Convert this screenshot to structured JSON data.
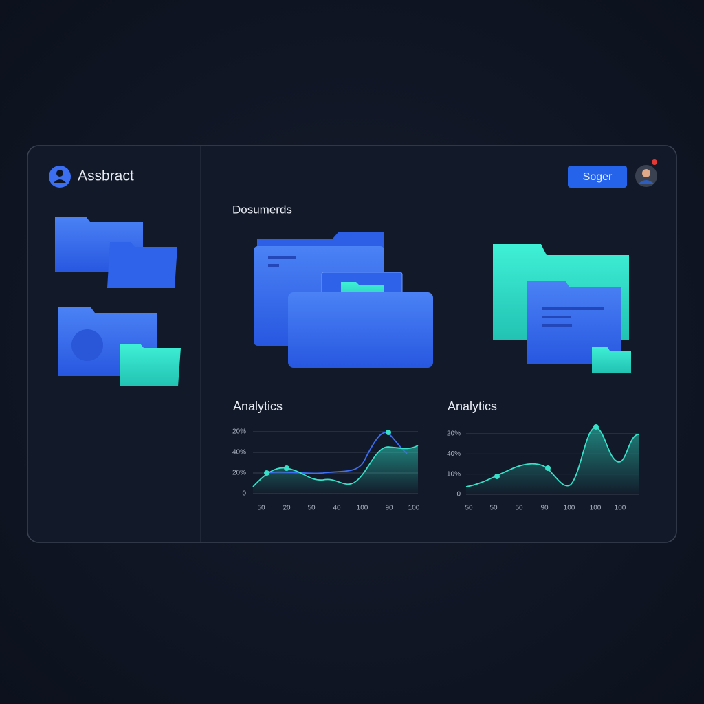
{
  "header": {
    "title": "Assbract",
    "button": "Soger"
  },
  "section": {
    "title": "Dosumerds"
  },
  "panels": [
    {
      "title": "Analytics",
      "y_labels": [
        "20%",
        "40%",
        "20%",
        "0"
      ],
      "x_labels": [
        "50",
        "20",
        "50",
        "40",
        "100",
        "90",
        "100"
      ]
    },
    {
      "title": "Analytics",
      "y_labels": [
        "20%",
        "40%",
        "10%",
        "0"
      ],
      "x_labels": [
        "50",
        "50",
        "50",
        "90",
        "100",
        "100",
        "100"
      ]
    }
  ]
}
